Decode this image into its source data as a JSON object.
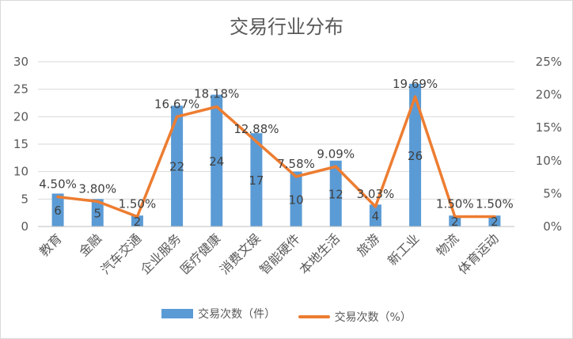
{
  "chart_data": {
    "type": "bar",
    "title": "交易行业分布",
    "categories": [
      "教育",
      "金融",
      "汽车交通",
      "企业服务",
      "医疗健康",
      "消费文娱",
      "智能硬件",
      "本地生活",
      "旅游",
      "新工业",
      "物流",
      "体育运动"
    ],
    "series": [
      {
        "name": "交易次数（件）",
        "type": "bar",
        "axis": "left",
        "color": "#5b9bd5",
        "values": [
          6,
          5,
          2,
          22,
          24,
          17,
          10,
          12,
          4,
          26,
          2,
          2
        ],
        "labels": [
          "6",
          "5",
          "2",
          "22",
          "24",
          "17",
          "10",
          "12",
          "4",
          "26",
          "2",
          "2"
        ]
      },
      {
        "name": "交易次数（%）",
        "type": "line",
        "axis": "right",
        "color": "#ed7d31",
        "values": [
          4.5,
          3.8,
          1.5,
          16.67,
          18.18,
          12.88,
          7.58,
          9.09,
          3.03,
          19.69,
          1.5,
          1.5
        ],
        "labels": [
          "4.50%",
          "3.80%",
          "1.50%",
          "16.67%",
          "18.18%",
          "12.88%",
          "7.58%",
          "9.09%",
          "3.03%",
          "19.69%",
          "1.50%",
          "1.50%"
        ]
      }
    ],
    "ylim_left": [
      0,
      30
    ],
    "yticks_left": [
      "0",
      "5",
      "10",
      "15",
      "20",
      "25",
      "30"
    ],
    "ylim_right": [
      0,
      25
    ],
    "yticks_right": [
      "0%",
      "5%",
      "10%",
      "15%",
      "20%",
      "25%"
    ],
    "grid": true,
    "legend_position": "bottom"
  }
}
